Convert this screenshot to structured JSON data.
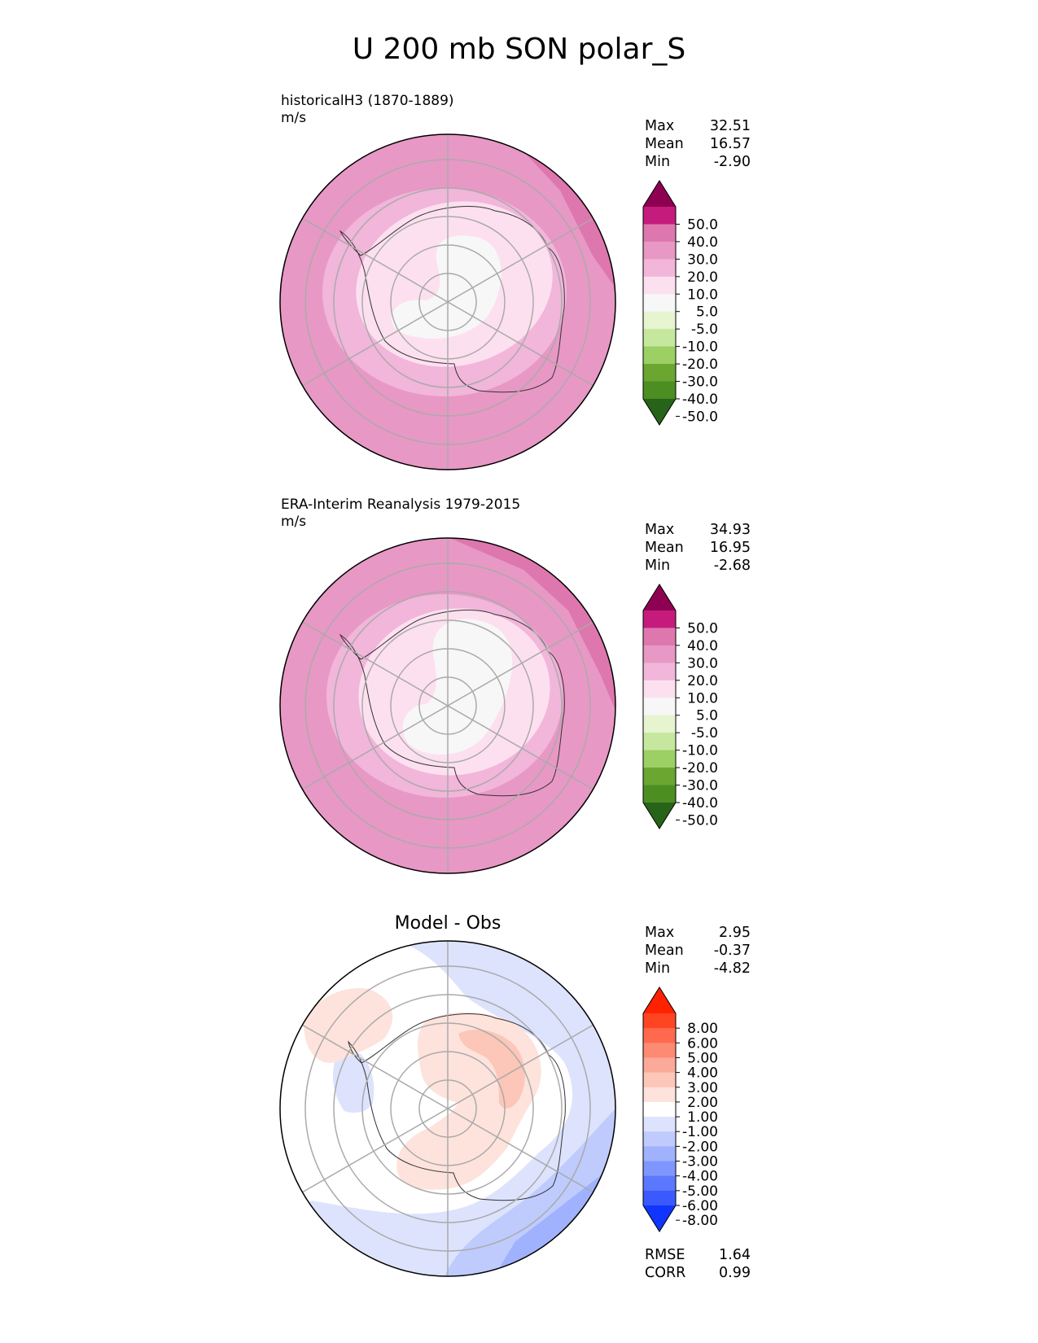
{
  "title": "U 200 mb SON polar_S",
  "panels": [
    {
      "id": "test",
      "title_line1": "historicalH3 (1870-1889)",
      "title_line2": "m/s",
      "stats": {
        "max_label": "Max",
        "max": "32.51",
        "mean_label": "Mean",
        "mean": "16.57",
        "min_label": "Min",
        "min": "-2.90"
      },
      "colorbar": {
        "ticks": [
          "50.0",
          "40.0",
          "30.0",
          "20.0",
          "10.0",
          "5.0",
          "-5.0",
          "-10.0",
          "-20.0",
          "-30.0",
          "-40.0",
          "-50.0"
        ],
        "colors": [
          "#8e0152",
          "#c51b7d",
          "#de77ae",
          "#e898c5",
          "#f1b6da",
          "#fde0ef",
          "#f7f7f7",
          "#e6f5d0",
          "#c5e89e",
          "#9ccf64",
          "#6aa630",
          "#4d8e23",
          "#276419"
        ]
      }
    },
    {
      "id": "ref",
      "title_line1": "ERA-Interim Reanalysis 1979-2015",
      "title_line2": "m/s",
      "stats": {
        "max_label": "Max",
        "max": "34.93",
        "mean_label": "Mean",
        "mean": "16.95",
        "min_label": "Min",
        "min": "-2.68"
      },
      "colorbar": {
        "ticks": [
          "50.0",
          "40.0",
          "30.0",
          "20.0",
          "10.0",
          "5.0",
          "-5.0",
          "-10.0",
          "-20.0",
          "-30.0",
          "-40.0",
          "-50.0"
        ],
        "colors": [
          "#8e0152",
          "#c51b7d",
          "#de77ae",
          "#e898c5",
          "#f1b6da",
          "#fde0ef",
          "#f7f7f7",
          "#e6f5d0",
          "#c5e89e",
          "#9ccf64",
          "#6aa630",
          "#4d8e23",
          "#276419"
        ]
      }
    },
    {
      "id": "diff",
      "title_center": "Model - Obs",
      "stats": {
        "max_label": "Max",
        "max": "2.95",
        "mean_label": "Mean",
        "mean": "-0.37",
        "min_label": "Min",
        "min": "-4.82"
      },
      "colorbar": {
        "ticks": [
          "8.00",
          "6.00",
          "5.00",
          "4.00",
          "3.00",
          "2.00",
          "1.00",
          "-1.00",
          "-2.00",
          "-3.00",
          "-4.00",
          "-5.00",
          "-6.00",
          "-8.00"
        ],
        "colors": [
          "#ff2200",
          "#ff4422",
          "#ff6a4f",
          "#fd8a73",
          "#fba998",
          "#fcc6b8",
          "#fde3dc",
          "#ffffff",
          "#dde3fc",
          "#bfcbfd",
          "#a0b2fe",
          "#7f96ff",
          "#5b78ff",
          "#3a5aff",
          "#1035ff"
        ]
      },
      "metrics": {
        "rmse_label": "RMSE",
        "rmse": "1.64",
        "corr_label": "CORR",
        "corr": "0.99"
      }
    }
  ]
}
